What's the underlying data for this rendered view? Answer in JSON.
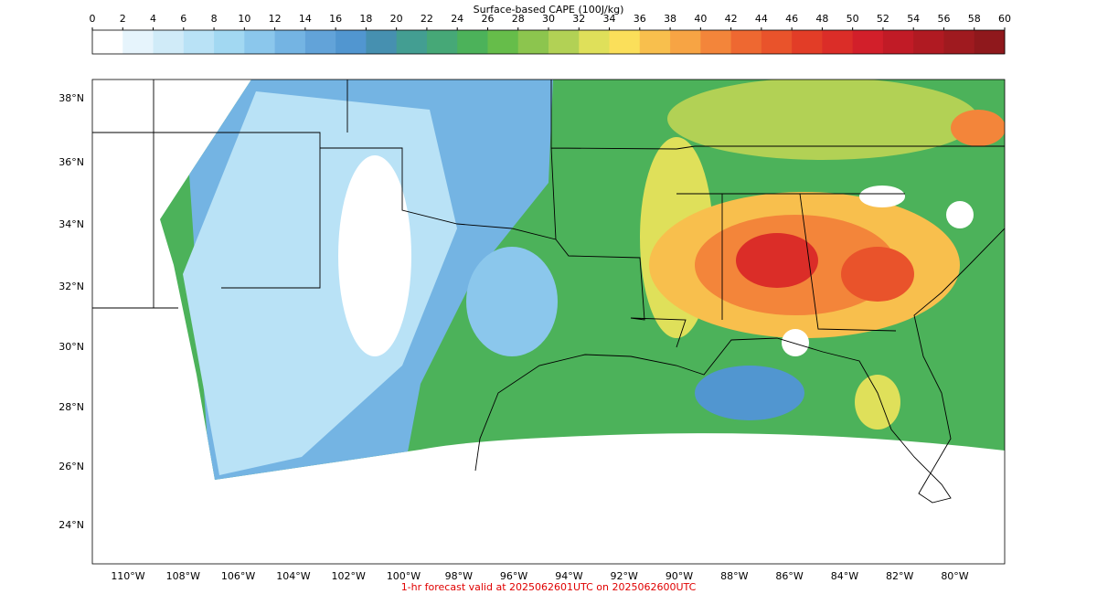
{
  "colorbar": {
    "title": "Surface-based CAPE (100J/kg)",
    "range": [
      0,
      60
    ],
    "ticks": [
      0,
      2,
      4,
      6,
      8,
      10,
      12,
      14,
      16,
      18,
      20,
      22,
      24,
      26,
      28,
      30,
      32,
      34,
      36,
      38,
      40,
      42,
      44,
      46,
      48,
      50,
      52,
      54,
      56,
      58,
      60
    ],
    "colors": [
      "#ffffff",
      "#e6f4fc",
      "#d0ebf8",
      "#b9e2f6",
      "#a2d8f2",
      "#8bc7ec",
      "#74b4e3",
      "#62a3d9",
      "#5196d0",
      "#4690b0",
      "#439e92",
      "#46a877",
      "#4cb25a",
      "#66bd4a",
      "#8cc54e",
      "#b2d155",
      "#dfe05a",
      "#fbdf5a",
      "#f8bf4d",
      "#f7a444",
      "#f3853a",
      "#ee6831",
      "#e9532b",
      "#e23d27",
      "#db2d28",
      "#d21f2a",
      "#c11b26",
      "#b01a22",
      "#9f1a1f",
      "#8f181c"
    ]
  },
  "map": {
    "lat_labels": [
      "38°N",
      "36°N",
      "34°N",
      "32°N",
      "30°N",
      "28°N",
      "26°N",
      "24°N"
    ],
    "lon_labels": [
      "110°W",
      "108°W",
      "106°W",
      "104°W",
      "102°W",
      "100°W",
      "98°W",
      "96°W",
      "94°W",
      "92°W",
      "90°W",
      "88°W",
      "86°W",
      "84°W",
      "82°W",
      "80°W"
    ]
  },
  "footer": "1-hr forecast valid at 2025062601UTC on 2025062600UTC"
}
